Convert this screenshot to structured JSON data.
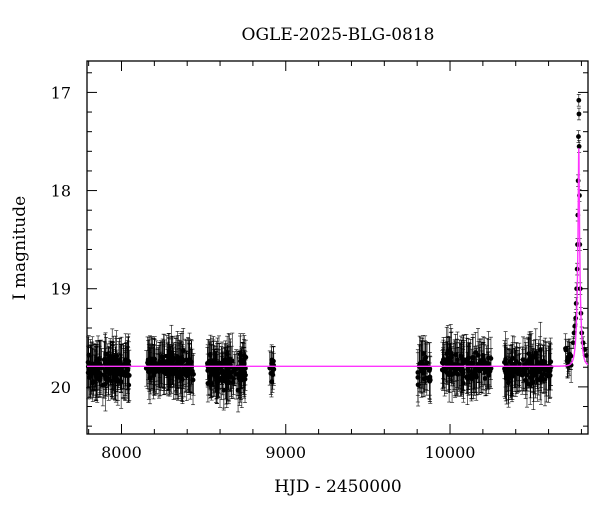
{
  "chart_data": {
    "type": "scatter",
    "title": "OGLE-2025-BLG-0818",
    "xlabel": "HJD - 2450000",
    "ylabel": "I magnitude",
    "xlim": [
      7790,
      10840
    ],
    "ylim": [
      20.48,
      16.68
    ],
    "y_inverted": true,
    "grid": false,
    "legend": "none",
    "x_ticks": [
      8000,
      9000,
      10000
    ],
    "y_ticks": [
      17,
      18,
      19,
      20
    ],
    "colors": {
      "points": "#000000",
      "model": "#ff33ff"
    },
    "baseline_mag": 19.79,
    "series": [
      {
        "kind": "observations",
        "seasons": [
          {
            "x_range": [
              7795,
              8050
            ],
            "mean_mag": 19.82,
            "scatter": 0.14,
            "err": 0.22,
            "count": 140
          },
          {
            "x_range": [
              8150,
              8440
            ],
            "mean_mag": 19.8,
            "scatter": 0.14,
            "err": 0.22,
            "count": 140
          },
          {
            "x_range": [
              8520,
              8760
            ],
            "mean_mag": 19.82,
            "scatter": 0.15,
            "err": 0.22,
            "count": 120
          },
          {
            "x_range": [
              8900,
              8935
            ],
            "mean_mag": 19.8,
            "scatter": 0.12,
            "err": 0.18,
            "count": 10
          },
          {
            "x_range": [
              9800,
              9880
            ],
            "mean_mag": 19.82,
            "scatter": 0.14,
            "err": 0.22,
            "count": 30
          },
          {
            "x_range": [
              9950,
              10250
            ],
            "mean_mag": 19.8,
            "scatter": 0.14,
            "err": 0.22,
            "count": 130
          },
          {
            "x_range": [
              10330,
              10620
            ],
            "mean_mag": 19.82,
            "scatter": 0.14,
            "err": 0.22,
            "count": 120
          },
          {
            "x_range": [
              10700,
              10745
            ],
            "mean_mag": 19.72,
            "scatter": 0.1,
            "err": 0.15,
            "count": 12
          }
        ],
        "event_points": [
          {
            "x": 10750,
            "y": 19.55
          },
          {
            "x": 10755,
            "y": 19.45
          },
          {
            "x": 10760,
            "y": 19.38
          },
          {
            "x": 10765,
            "y": 19.3
          },
          {
            "x": 10768,
            "y": 19.15
          },
          {
            "x": 10771,
            "y": 19.0
          },
          {
            "x": 10774,
            "y": 18.8
          },
          {
            "x": 10776,
            "y": 18.55
          },
          {
            "x": 10778,
            "y": 18.25
          },
          {
            "x": 10780,
            "y": 17.9
          },
          {
            "x": 10782,
            "y": 17.45
          },
          {
            "x": 10784,
            "y": 17.08
          },
          {
            "x": 10785,
            "y": 17.22
          },
          {
            "x": 10786,
            "y": 17.55
          },
          {
            "x": 10788,
            "y": 18.05
          },
          {
            "x": 10790,
            "y": 18.55
          },
          {
            "x": 10793,
            "y": 19.0
          },
          {
            "x": 10797,
            "y": 19.25
          },
          {
            "x": 10802,
            "y": 19.45
          },
          {
            "x": 10810,
            "y": 19.55
          },
          {
            "x": 10820,
            "y": 19.62
          },
          {
            "x": 10830,
            "y": 19.68
          }
        ]
      },
      {
        "kind": "model",
        "model": {
          "t0": 10784,
          "u0": 0.13,
          "tE": 18,
          "baseline": 19.79
        }
      }
    ]
  }
}
